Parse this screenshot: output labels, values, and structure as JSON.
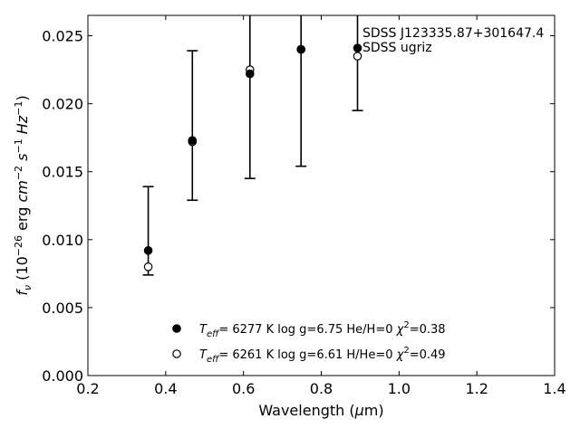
{
  "chart_data": {
    "type": "scatter",
    "xlabel_parts": [
      "Wavelength (",
      "μ",
      "m)"
    ],
    "ylabel_parts": [
      "f",
      "ν",
      " (10",
      "−26",
      " erg ",
      "cm",
      "−2",
      " ",
      "s",
      "−1",
      " ",
      "Hz",
      "−1",
      ")"
    ],
    "xlim": [
      0.2,
      1.4
    ],
    "ylim": [
      0.0,
      0.0265
    ],
    "xticks": [
      0.2,
      0.4,
      0.6,
      0.8,
      1.0,
      1.2,
      1.4
    ],
    "xtick_labels": [
      "0.2",
      "0.4",
      "0.6",
      "0.8",
      "1.0",
      "1.2",
      "1.4"
    ],
    "yticks": [
      0.0,
      0.005,
      0.01,
      0.015,
      0.02,
      0.025
    ],
    "ytick_labels": [
      "0.000",
      "0.005",
      "0.010",
      "0.015",
      "0.020",
      "0.025"
    ],
    "grid": false,
    "legend_placement": "bottom-center",
    "annotations": [
      "SDSS J123335.87+301647.4",
      "SDSS ugriz"
    ],
    "observed": {
      "x": [
        0.3551,
        0.4686,
        0.6166,
        0.748,
        0.8932
      ],
      "y": [
        0.0092,
        0.0173,
        0.0222,
        0.024,
        0.0241
      ],
      "yerr_low": [
        0.0074,
        0.0129,
        0.0145,
        0.0154,
        0.0195
      ],
      "yerr_high": [
        0.0139,
        0.0239,
        0.03,
        0.03,
        0.03
      ]
    },
    "series": [
      {
        "legend": [
          "T",
          "eff",
          "=  6277 K  log g=6.75  He/H=0  ",
          "χ",
          "2",
          "=0.38"
        ],
        "marker": "filled-circle",
        "color": "#000000",
        "x": [
          0.3551,
          0.4686,
          0.6166,
          0.748,
          0.8932
        ],
        "y": [
          0.0092,
          0.0173,
          0.0222,
          0.024,
          0.0241
        ]
      },
      {
        "legend": [
          "T",
          "eff",
          "=  6261 K  log g=6.61  H/He=0  ",
          "χ",
          "2",
          "=0.49"
        ],
        "marker": "open-circle",
        "color": "#000000",
        "x": [
          0.3551,
          0.4686,
          0.6166,
          0.748,
          0.8932
        ],
        "y": [
          0.008,
          0.0172,
          0.0225,
          0.024,
          0.0235
        ]
      }
    ]
  }
}
